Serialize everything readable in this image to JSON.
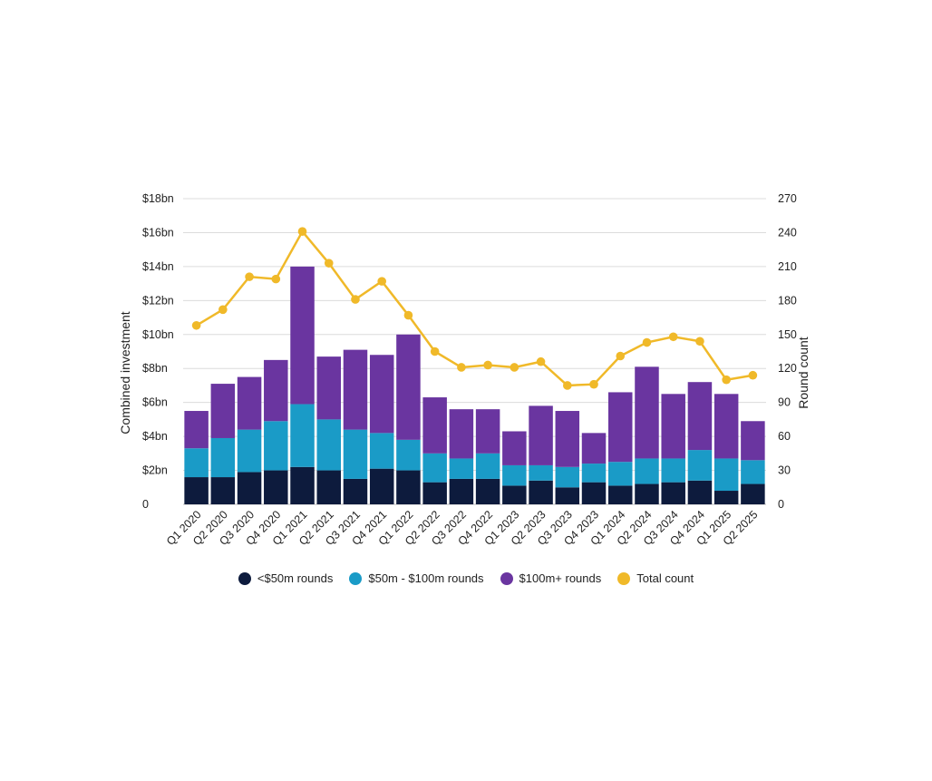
{
  "chart_data": {
    "type": "bar",
    "stacked": true,
    "categories": [
      "Q1 2020",
      "Q2 2020",
      "Q3 2020",
      "Q4 2020",
      "Q1 2021",
      "Q2 2021",
      "Q3 2021",
      "Q4 2021",
      "Q1 2022",
      "Q2 2022",
      "Q3 2022",
      "Q4 2022",
      "Q1 2023",
      "Q2 2023",
      "Q3 2023",
      "Q4 2023",
      "Q1 2024",
      "Q2 2024",
      "Q3 2024",
      "Q4 2024",
      "Q1 2025",
      "Q2 2025"
    ],
    "series": [
      {
        "name": "<$50m rounds",
        "color": "#0d1b3d",
        "values": [
          1.6,
          1.6,
          1.9,
          2.0,
          2.2,
          2.0,
          1.5,
          2.1,
          2.0,
          1.3,
          1.5,
          1.5,
          1.1,
          1.4,
          1.0,
          1.3,
          1.1,
          1.2,
          1.3,
          1.4,
          0.8,
          1.2
        ]
      },
      {
        "name": "$50m - $100m rounds",
        "color": "#1a9bc7",
        "values": [
          1.7,
          2.3,
          2.5,
          2.9,
          3.7,
          3.0,
          2.9,
          2.1,
          1.8,
          1.7,
          1.2,
          1.5,
          1.2,
          0.9,
          1.2,
          1.1,
          1.4,
          1.5,
          1.4,
          1.8,
          1.9,
          1.4
        ]
      },
      {
        "name": "$100m+ rounds",
        "color": "#6a35a0",
        "values": [
          2.2,
          3.2,
          3.1,
          3.6,
          8.1,
          3.7,
          4.7,
          4.6,
          6.2,
          3.3,
          2.9,
          2.6,
          2.0,
          3.5,
          3.3,
          1.8,
          4.1,
          5.4,
          3.8,
          4.0,
          3.8,
          2.3
        ]
      },
      {
        "name": "Total count",
        "color": "#f0b929",
        "type": "line",
        "axis": "right",
        "values": [
          158,
          172,
          201,
          199,
          241,
          213,
          181,
          197,
          167,
          135,
          121,
          123,
          121,
          126,
          105,
          106,
          131,
          143,
          148,
          144,
          110,
          114
        ]
      }
    ],
    "ylabel": "Combined investment",
    "y2label": "Round count",
    "ylim": [
      0,
      18
    ],
    "y2lim": [
      0,
      270
    ],
    "yticks": [
      "0",
      "$2bn",
      "$4bn",
      "$6bn",
      "$8bn",
      "$10bn",
      "$12bn",
      "$14bn",
      "$16bn",
      "$18bn"
    ],
    "y2ticks": [
      "0",
      "30",
      "60",
      "90",
      "120",
      "150",
      "180",
      "210",
      "240",
      "270"
    ],
    "grid": true,
    "legend_position": "bottom"
  }
}
